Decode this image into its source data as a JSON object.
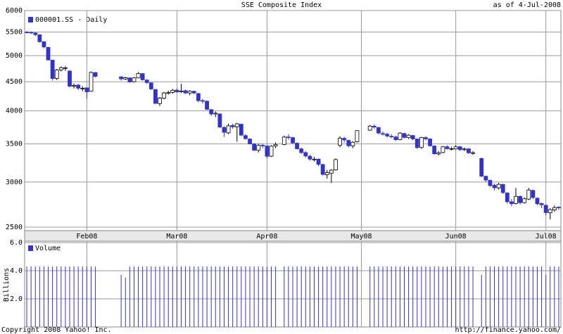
{
  "chart_data": {
    "type": "candlestick",
    "title": "SSE Composite Index",
    "subtitle": "as of  4-Jul-2008",
    "footer_left": "Copyright 2008 Yahoo! Inc.",
    "footer_right": "http://finance.yahoo.com/",
    "log_scale": true,
    "grid": true,
    "categories": [
      null,
      null,
      null,
      null,
      null,
      null,
      null,
      null,
      null,
      null,
      null,
      null,
      null,
      null,
      "Feb08",
      null,
      null,
      null,
      null,
      null,
      null,
      null,
      null,
      null,
      null,
      null,
      null,
      null,
      null,
      null,
      null,
      null,
      null,
      null,
      null,
      "Mar08",
      null,
      null,
      null,
      null,
      null,
      null,
      null,
      null,
      null,
      null,
      null,
      null,
      null,
      null,
      null,
      null,
      null,
      null,
      null,
      null,
      "Apr08",
      null,
      null,
      null,
      null,
      null,
      null,
      null,
      null,
      null,
      null,
      null,
      null,
      null,
      null,
      null,
      null,
      null,
      null,
      null,
      null,
      null,
      "May08",
      null,
      null,
      null,
      null,
      null,
      null,
      null,
      null,
      null,
      null,
      null,
      null,
      null,
      null,
      null,
      null,
      null,
      null,
      null,
      null,
      null,
      "Jun08",
      null,
      null,
      null,
      null,
      null,
      null,
      null,
      null,
      null,
      null,
      null,
      null,
      null,
      null,
      null,
      null,
      null,
      null,
      null,
      null,
      "Jul08",
      null,
      null,
      null
    ],
    "ylim": [
      2500,
      6000
    ],
    "yticks": [
      2500,
      3000,
      3500,
      4000,
      4500,
      5000,
      5500,
      6000
    ],
    "series": [
      {
        "name": "000001.SS - Daily",
        "color": "#3333cc",
        "up_color": "#ffffff",
        "open": [
          5500,
          5497,
          5480,
          5440,
          5290,
          5170,
          4910,
          4560,
          4720,
          4760,
          4700,
          4420,
          4440,
          4380,
          4390,
          4330,
          4670,
          null,
          null,
          null,
          null,
          null,
          4590,
          4550,
          4570,
          4500,
          4570,
          4650,
          4530,
          4480,
          4360,
          4120,
          4210,
          4300,
          4310,
          4350,
          4320,
          4340,
          4300,
          4330,
          4290,
          4170,
          4160,
          4020,
          3950,
          3950,
          3740,
          3660,
          3770,
          3750,
          3790,
          3620,
          3570,
          3500,
          3410,
          3480,
          3470,
          3330,
          3470,
          null,
          3490,
          3600,
          3590,
          3510,
          3430,
          3380,
          3330,
          3290,
          3290,
          3220,
          3090,
          3110,
          3150,
          3480,
          3580,
          3550,
          3470,
          3530,
          null,
          null,
          3700,
          3760,
          3740,
          3650,
          3640,
          3610,
          3600,
          3560,
          3650,
          3590,
          3620,
          3570,
          3450,
          3590,
          3570,
          3470,
          3360,
          3380,
          3460,
          3430,
          3430,
          3460,
          3420,
          3430,
          3370,
          null,
          3300,
          3070,
          3020,
          2960,
          2930,
          2970,
          2870,
          2770,
          2750,
          2830,
          2760,
          2800,
          2900,
          2810,
          2750,
          2730,
          2650,
          2680,
          2710
        ],
        "high": [
          5522,
          5510,
          5500,
          5450,
          5300,
          5180,
          4920,
          4740,
          4790,
          4790,
          4710,
          4470,
          4460,
          4420,
          4400,
          4690,
          4680,
          null,
          null,
          null,
          null,
          null,
          4600,
          4590,
          4580,
          4590,
          4680,
          4660,
          4550,
          4490,
          4370,
          4230,
          4320,
          4340,
          4370,
          4380,
          4460,
          4360,
          4350,
          4340,
          4300,
          4200,
          4170,
          4030,
          3990,
          3960,
          3760,
          3800,
          3800,
          3810,
          3800,
          3640,
          3580,
          3510,
          3500,
          3500,
          3480,
          3480,
          3520,
          null,
          3620,
          3640,
          3600,
          3520,
          3450,
          3400,
          3350,
          3320,
          3300,
          3230,
          3150,
          3160,
          3300,
          3610,
          3600,
          3560,
          3540,
          3700,
          null,
          null,
          3780,
          3790,
          3750,
          3680,
          3660,
          3640,
          3620,
          3670,
          3660,
          3640,
          3630,
          3580,
          3600,
          3610,
          3580,
          3480,
          3400,
          3470,
          3480,
          3460,
          3480,
          3470,
          3450,
          3440,
          3400,
          null,
          3310,
          3080,
          3030,
          2980,
          2990,
          2980,
          2880,
          2800,
          2930,
          2840,
          2820,
          2930,
          2910,
          2820,
          2760,
          2740,
          2700,
          2730,
          2720
        ],
        "low": [
          5470,
          5455,
          5410,
          5270,
          5150,
          4900,
          4520,
          4530,
          4690,
          4700,
          4400,
          4380,
          4350,
          4330,
          4200,
          4320,
          4580,
          null,
          null,
          null,
          null,
          null,
          4520,
          4530,
          4480,
          4490,
          4560,
          4520,
          4460,
          4350,
          4110,
          4080,
          4190,
          4270,
          4290,
          4300,
          4300,
          4280,
          4260,
          4280,
          4140,
          4120,
          4010,
          3920,
          3900,
          3730,
          3600,
          3640,
          3720,
          3530,
          3610,
          3560,
          3490,
          3400,
          3380,
          3440,
          3300,
          3320,
          3440,
          null,
          3480,
          3560,
          3500,
          3420,
          3360,
          3310,
          3270,
          3260,
          3200,
          3080,
          3040,
          2990,
          3140,
          3450,
          3520,
          3450,
          3440,
          3520,
          null,
          null,
          3690,
          3720,
          3640,
          3620,
          3590,
          3580,
          3540,
          3550,
          3580,
          3570,
          3550,
          3430,
          3430,
          3550,
          3460,
          3350,
          3340,
          3370,
          3420,
          3410,
          3420,
          3400,
          3400,
          3360,
          3350,
          null,
          3060,
          3000,
          2940,
          2900,
          2910,
          2860,
          2750,
          2720,
          2740,
          2740,
          2750,
          2790,
          2800,
          2730,
          2700,
          2620,
          2580,
          2660,
          2680
        ],
        "close": [
          5497,
          5482,
          5443,
          5290,
          5180,
          4914,
          4559,
          4717,
          4762,
          4761,
          4419,
          4434,
          4384,
          4383,
          4320,
          4672,
          4599,
          null,
          null,
          null,
          null,
          null,
          4552,
          4574,
          4497,
          4570,
          4654,
          4535,
          4485,
          4370,
          4123,
          4211,
          4300,
          4306,
          4348,
          4320,
          4335,
          4300,
          4330,
          4300,
          4168,
          4165,
          4026,
          3950,
          3962,
          3746,
          3668,
          3765,
          3750,
          3796,
          3626,
          3575,
          3500,
          3411,
          3479,
          3473,
          3329,
          3468,
          3489,
          null,
          3598,
          3595,
          3514,
          3432,
          3379,
          3333,
          3291,
          3291,
          3222,
          3094,
          3116,
          3147,
          3285,
          3583,
          3557,
          3474,
          3523,
          3693,
          null,
          null,
          3761,
          3745,
          3657,
          3645,
          3613,
          3607,
          3560,
          3657,
          3593,
          3626,
          3571,
          3448,
          3591,
          3571,
          3473,
          3364,
          3375,
          3459,
          3433,
          3433,
          3459,
          3420,
          3429,
          3376,
          3377,
          null,
          3072,
          3024,
          2957,
          2931,
          2972,
          2874,
          2770,
          2748,
          2831,
          2760,
          2803,
          2905,
          2818,
          2748,
          2736,
          2651,
          2683,
          2705,
          2703
        ]
      }
    ],
    "volume": {
      "name": "Volume",
      "ylabel": "Billions",
      "color": "#3333cc",
      "ylim": [
        0,
        6
      ],
      "yticks": [
        {
          "value": 2,
          "label": "2.0"
        },
        {
          "value": 4,
          "label": "4.0"
        },
        {
          "value": 6,
          "label": "6.0"
        }
      ],
      "values": [
        4.3,
        4.3,
        4.3,
        4.3,
        4.3,
        4.3,
        4.3,
        4.3,
        4.3,
        4.3,
        4.3,
        4.3,
        4.3,
        4.3,
        4.3,
        4.3,
        4.3,
        null,
        null,
        null,
        null,
        null,
        3.7,
        3.5,
        4.3,
        4.3,
        4.3,
        4.3,
        4.3,
        4.3,
        4.3,
        4.3,
        4.3,
        4.3,
        4.3,
        4.3,
        4.3,
        4.3,
        4.3,
        4.3,
        4.3,
        4.3,
        4.3,
        4.3,
        4.3,
        4.3,
        4.3,
        4.3,
        4.3,
        4.3,
        4.3,
        4.3,
        4.3,
        4.3,
        4.3,
        4.3,
        4.3,
        4.3,
        4.3,
        null,
        4.3,
        4.3,
        4.3,
        4.3,
        4.3,
        4.3,
        4.3,
        4.3,
        4.3,
        4.3,
        4.3,
        4.3,
        4.3,
        4.3,
        4.3,
        4.3,
        4.3,
        4.3,
        null,
        null,
        4.3,
        4.3,
        4.3,
        4.3,
        4.3,
        4.3,
        4.3,
        4.3,
        4.3,
        4.3,
        4.3,
        4.3,
        4.3,
        4.3,
        4.3,
        4.3,
        4.3,
        4.3,
        4.3,
        4.3,
        4.3,
        4.3,
        4.3,
        4.3,
        4.3,
        null,
        3.7,
        4.3,
        4.3,
        4.3,
        4.3,
        4.3,
        4.3,
        4.3,
        4.3,
        4.3,
        4.3,
        4.3,
        4.3,
        4.3,
        4.3,
        3.7,
        4.3,
        4.3,
        4.3
      ]
    }
  }
}
